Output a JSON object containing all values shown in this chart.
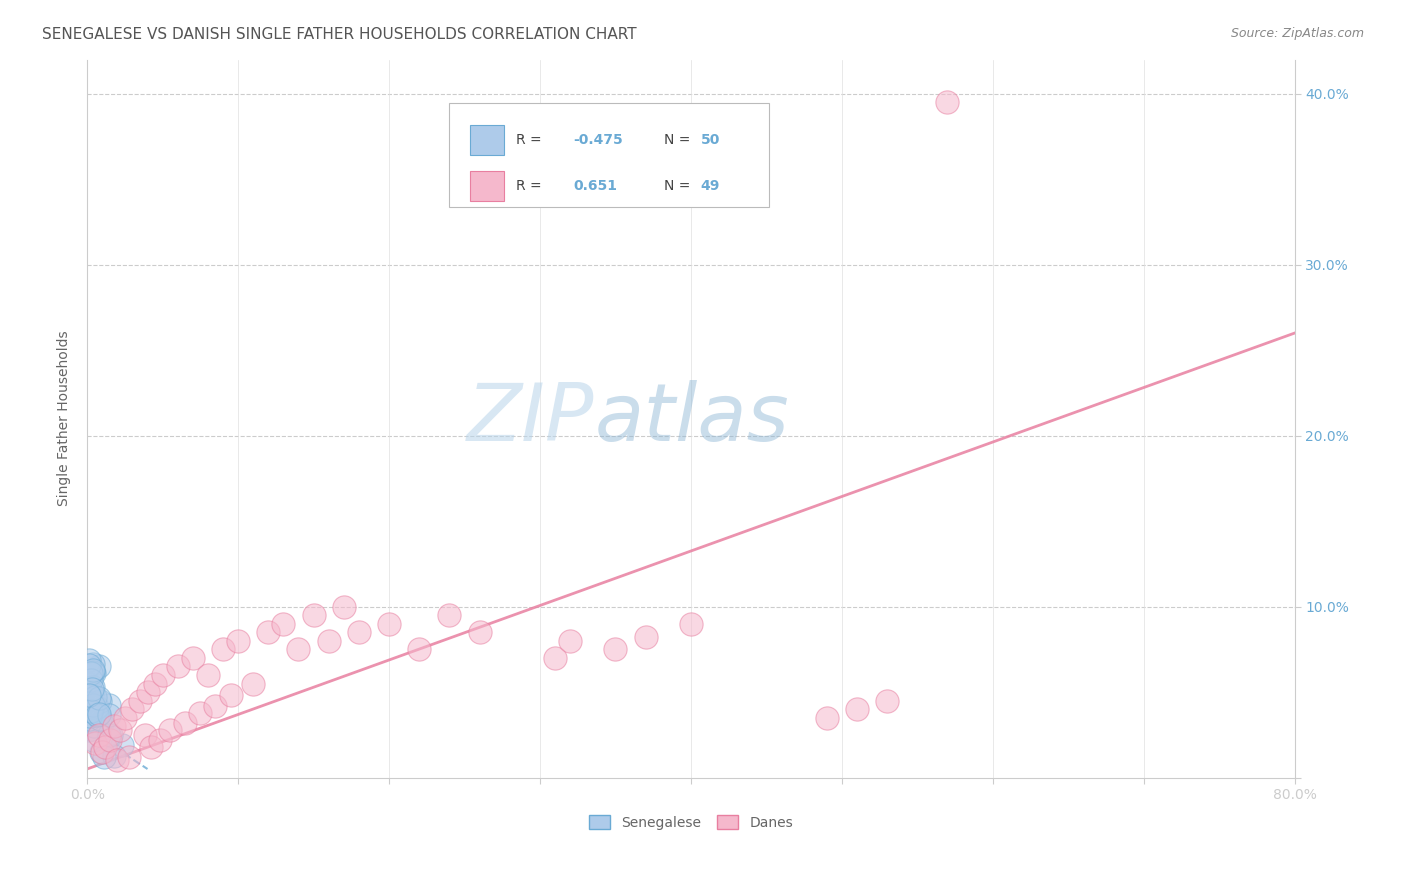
{
  "title": "SENEGALESE VS DANISH SINGLE FATHER HOUSEHOLDS CORRELATION CHART",
  "source": "Source: ZipAtlas.com",
  "ylabel": "Single Father Households",
  "xlim": [
    0,
    0.8
  ],
  "ylim": [
    0,
    0.42
  ],
  "senegalese_color": "#aecbea",
  "danes_color": "#f5b8cc",
  "senegalese_edge": "#6aaad4",
  "danes_edge": "#e87fa0",
  "legend_R_sen": "-0.475",
  "legend_N_sen": "50",
  "legend_R_dan": "0.651",
  "legend_N_dan": "49",
  "watermark_ZIP": "ZIP",
  "watermark_atlas": "atlas",
  "background_color": "#ffffff",
  "grid_color": "#cccccc",
  "title_color": "#555555",
  "axis_label_color": "#6aaad4",
  "R_value_color": "#6aaad4",
  "danes_line_color": "#e87fa0",
  "sen_line_color": "#6aaad4",
  "danes_line": [
    0.0,
    0.0,
    0.8,
    0.26
  ],
  "sen_line": [
    0.0,
    0.028,
    0.05,
    0.005
  ]
}
